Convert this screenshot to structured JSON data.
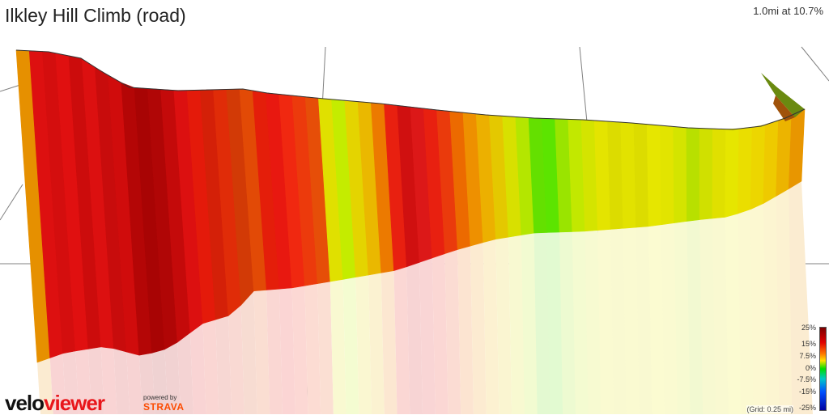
{
  "header": {
    "title": "Ilkley Hill Climb (road)",
    "summary": "1.0mi at 10.7%"
  },
  "legend": {
    "labels": [
      "25%",
      "15%",
      "7.5%",
      "0%",
      "-7.5%",
      "-15%",
      "-25%"
    ]
  },
  "grid_note": "(Grid: 0.25 mi)",
  "branding": {
    "logo_velo": "velo",
    "logo_viewer": "viewer",
    "powered_by": "powered by",
    "strava": "STRAVA"
  },
  "colors": {
    "grid": "#808080",
    "edge": "#333333",
    "brand_red": "#e8161b",
    "strava_orange": "#fc4c02"
  },
  "profile": {
    "segment_gradients_percent": [
      12,
      17,
      17,
      18,
      18,
      19,
      19,
      20,
      22,
      24,
      24,
      20,
      18,
      16,
      15,
      14,
      14,
      13,
      15,
      16,
      16,
      15,
      14,
      12,
      10,
      8,
      6,
      5,
      4,
      5,
      6,
      8,
      11,
      15,
      17,
      17,
      16,
      15,
      13,
      12,
      11,
      10,
      9,
      8,
      6,
      4,
      2,
      2,
      3,
      4,
      4,
      4,
      5,
      5,
      5,
      6,
      7,
      7,
      8,
      10
    ],
    "segment_colors": [
      "#e69000",
      "#dd1010",
      "#d40e0e",
      "#e01010",
      "#cc0c0c",
      "#dc1010",
      "#c80c0c",
      "#d00c0c",
      "#b40606",
      "#a80404",
      "#b00606",
      "#c40a0a",
      "#dc1010",
      "#e41a0a",
      "#d42008",
      "#e02c08",
      "#d23a06",
      "#e24a06",
      "#e41e0a",
      "#e81810",
      "#f02810",
      "#ec3a0c",
      "#e64e08",
      "#e0e000",
      "#c4ec00",
      "#e4d400",
      "#eab800",
      "#ec7a00",
      "#e82010",
      "#d01010",
      "#dc1818",
      "#e82010",
      "#ea3a0c",
      "#ec6a00",
      "#ee9000",
      "#ecb000",
      "#e4c800",
      "#d8e000",
      "#b4e600",
      "#64e000",
      "#5ce400",
      "#9ae400",
      "#c2e800",
      "#d4e400",
      "#e4e400",
      "#dcdc00",
      "#e2e200",
      "#dcdc00",
      "#e6e600",
      "#e2e400",
      "#d4e400",
      "#b8e000",
      "#d0e000",
      "#e0e000",
      "#e6e600",
      "#eade00",
      "#ecd600",
      "#eeca00",
      "#ecb400",
      "#e89600"
    ]
  }
}
